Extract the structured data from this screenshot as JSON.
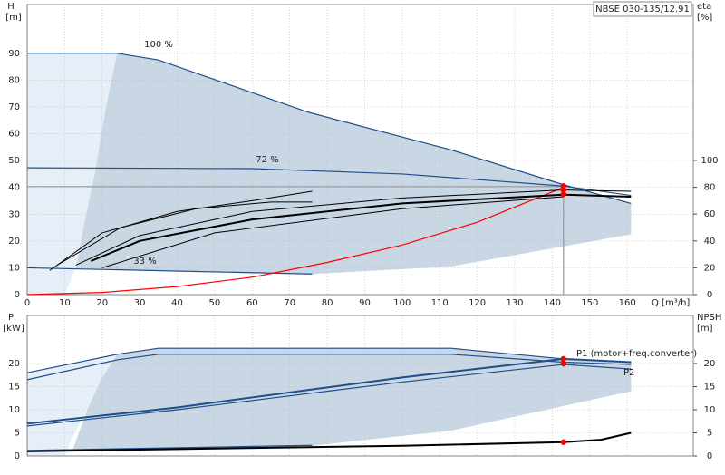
{
  "chart_data": [
    {
      "type": "line",
      "title": "NBSE 030-135/12.91",
      "ylabel": "H",
      "yunit": "[m]",
      "y2label": "eta",
      "y2unit": "[%]",
      "xlabel": "Q [m³/h]",
      "xlim": [
        0,
        177.6
      ],
      "xticks": [
        0,
        10,
        20,
        30,
        40,
        50,
        60,
        70,
        80,
        90,
        100,
        110,
        120,
        130,
        140,
        150,
        160
      ],
      "ylim": [
        0,
        108.2
      ],
      "yticks": [
        0,
        10,
        20,
        30,
        40,
        50,
        60,
        70,
        80,
        90
      ],
      "y2lim": [
        0,
        216.2
      ],
      "y2ticks": [
        0,
        20,
        40,
        60,
        80,
        100
      ],
      "grid": true,
      "xtick_labels": true,
      "series": [
        {
          "style": "area",
          "color": "#e6eff8",
          "x": [
            0,
            24,
            21,
            18,
            15,
            13,
            10,
            0
          ],
          "values": [
            90,
            90,
            70,
            45,
            25,
            10,
            0,
            0
          ]
        },
        {
          "style": "area",
          "color": "#c9d6e3",
          "x": [
            24,
            35,
            75,
            113,
            143,
            161,
            161,
            113,
            76,
            40,
            13,
            15,
            18,
            21
          ],
          "values": [
            90,
            87.5,
            68,
            54,
            41,
            34,
            22.5,
            10.5,
            7.7,
            8.5,
            9.8,
            25,
            45,
            70
          ]
        },
        {
          "style": "line",
          "color": "#999999",
          "x": [
            0,
            143,
            143
          ],
          "values": [
            40.3,
            40.3,
            0
          ]
        },
        {
          "name": "100 %",
          "style": "line",
          "color": "#1f4e8c",
          "x": [
            0,
            24,
            35,
            75,
            113,
            143,
            161
          ],
          "values": [
            90,
            90,
            87.5,
            68,
            54,
            41,
            34
          ]
        },
        {
          "name": "72 %",
          "style": "line",
          "color": "#1f4e8c",
          "x": [
            0,
            60,
            100,
            143,
            161
          ],
          "values": [
            47.3,
            47,
            45,
            40.5,
            37
          ]
        },
        {
          "name": "33 %",
          "style": "line",
          "color": "#1f4e8c",
          "x": [
            0,
            76
          ],
          "values": [
            10,
            7.7
          ]
        },
        {
          "style": "line",
          "color": "#ff0000",
          "x": [
            0,
            20,
            40,
            60,
            80,
            100,
            120,
            143
          ],
          "values": [
            0,
            0.8,
            3,
            6.5,
            12,
            18.5,
            27,
            40
          ]
        },
        {
          "style": "line",
          "color": "#000000",
          "width": 2,
          "axis": "y2",
          "x": [
            17,
            30,
            60,
            100,
            143,
            161
          ],
          "values": [
            25,
            40,
            56,
            68,
            74.5,
            73
          ]
        },
        {
          "style": "line",
          "color": "#000000",
          "width": 1,
          "axis": "y2",
          "x": [
            13,
            30,
            60,
            100,
            143,
            161
          ],
          "values": [
            22,
            44,
            62,
            72,
            78,
            77
          ]
        },
        {
          "style": "line",
          "color": "#000000",
          "width": 1,
          "axis": "y2",
          "x": [
            8,
            25,
            45,
            65,
            76
          ],
          "values": [
            22,
            50,
            64,
            69,
            69
          ]
        },
        {
          "style": "line",
          "color": "#000000",
          "width": 1,
          "axis": "y2",
          "x": [
            6,
            20,
            40,
            60,
            76
          ],
          "values": [
            18,
            46,
            62,
            70,
            77
          ]
        },
        {
          "style": "line",
          "color": "#000000",
          "width": 1,
          "axis": "y2",
          "x": [
            20,
            50,
            100,
            143
          ],
          "values": [
            20,
            46,
            64,
            73
          ]
        },
        {
          "style": "points",
          "color": "#ff0000",
          "x": [
            143,
            143,
            143
          ],
          "values": [
            40.5,
            39,
            37.5
          ]
        }
      ]
    },
    {
      "type": "line",
      "ylabel": "P",
      "yunit": "[kW]",
      "y2label": "NPSH",
      "y2unit": "[m]",
      "xlim": [
        0,
        177.6
      ],
      "xticks": [
        0,
        10,
        20,
        30,
        40,
        50,
        60,
        70,
        80,
        90,
        100,
        110,
        120,
        130,
        140,
        150,
        160
      ],
      "ylim": [
        0,
        30.4
      ],
      "yticks": [
        0,
        5,
        10,
        15,
        20
      ],
      "y2lim": [
        0,
        30.4
      ],
      "y2ticks": [
        0,
        5,
        10,
        15,
        20
      ],
      "grid": true,
      "xtick_labels": false,
      "series": [
        {
          "style": "area",
          "color": "#e6eff8",
          "x": [
            0,
            24,
            20,
            16,
            12,
            10,
            0
          ],
          "values": [
            18,
            22,
            17,
            10,
            4,
            0,
            0
          ]
        },
        {
          "style": "area",
          "color": "#c9d6e3",
          "x": [
            24,
            35,
            113,
            143,
            161,
            161,
            113,
            76,
            40,
            12,
            16,
            20
          ],
          "values": [
            22,
            23.3,
            23.3,
            21,
            20.3,
            14,
            5.5,
            2.2,
            1.5,
            1,
            10,
            17
          ]
        },
        {
          "style": "line",
          "color": "#1f4e8c",
          "x": [
            0,
            24,
            35,
            113,
            143,
            161
          ],
          "values": [
            18,
            22,
            23.3,
            23.3,
            21,
            20.3
          ]
        },
        {
          "style": "line",
          "color": "#1f4e8c",
          "x": [
            0,
            24,
            35,
            113,
            143,
            161
          ],
          "values": [
            16.5,
            20.8,
            22,
            22,
            20.3,
            19.8
          ]
        },
        {
          "name": "P1 (motor+freq.converter)",
          "style": "line",
          "color": "#1f4e8c",
          "width": 2,
          "x": [
            0,
            40,
            100,
            143,
            161
          ],
          "values": [
            7,
            10.5,
            17,
            21,
            20.3
          ]
        },
        {
          "name": "P2",
          "style": "line",
          "color": "#1f4e8c",
          "x": [
            0,
            40,
            100,
            143,
            161
          ],
          "values": [
            6.5,
            10,
            16,
            19.8,
            18.8
          ]
        },
        {
          "style": "line",
          "color": "#1f4e8c",
          "x": [
            0,
            76
          ],
          "values": [
            1.2,
            2.3
          ]
        },
        {
          "style": "line",
          "color": "#000000",
          "width": 2,
          "axis": "y2",
          "x": [
            0,
            40,
            100,
            143,
            153,
            161
          ],
          "values": [
            1,
            1.5,
            2.2,
            3,
            3.5,
            5
          ]
        },
        {
          "style": "points",
          "color": "#ff0000",
          "x": [
            143,
            143
          ],
          "values": [
            21,
            20
          ]
        },
        {
          "style": "points",
          "color": "#ff0000",
          "axis": "y2",
          "x": [
            143
          ],
          "values": [
            3
          ]
        }
      ]
    }
  ]
}
